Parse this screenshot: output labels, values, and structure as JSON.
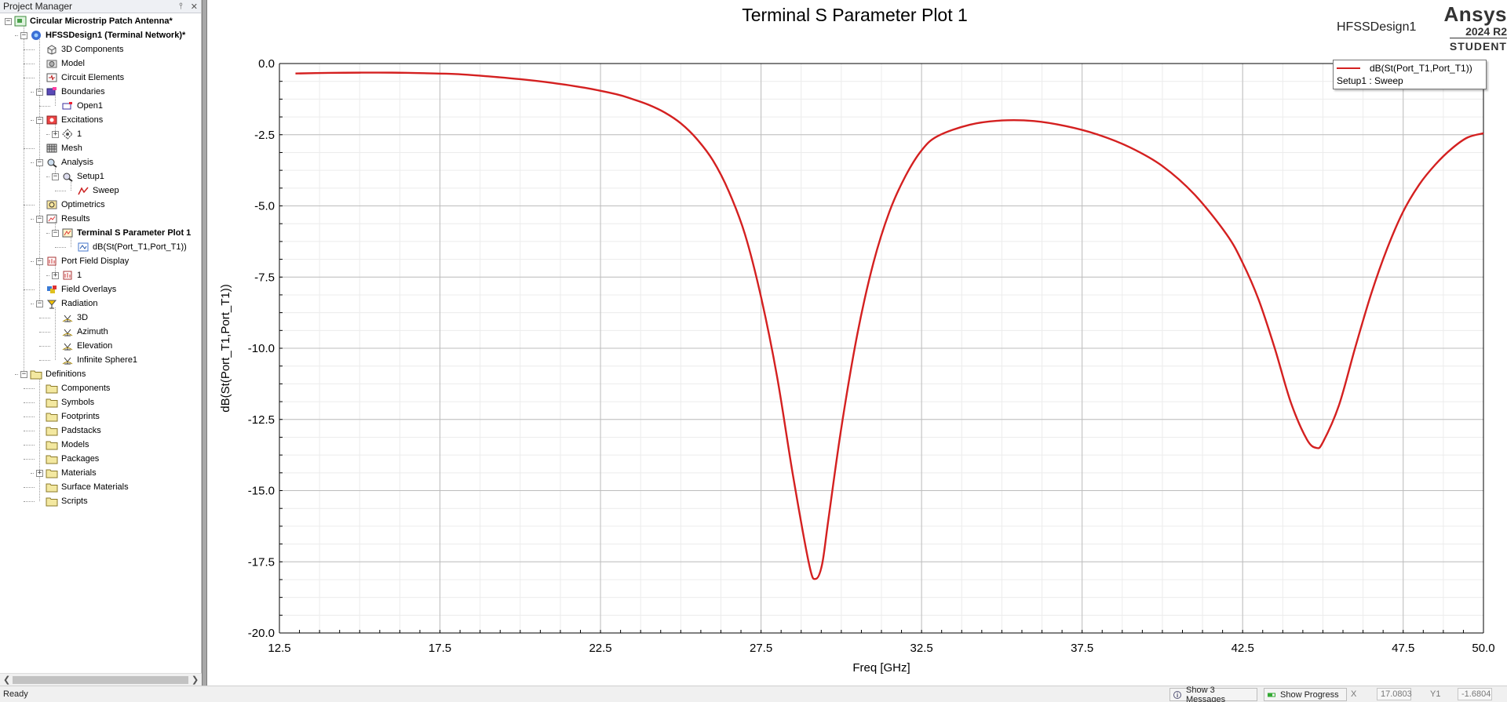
{
  "project_manager": {
    "title": "Project Manager",
    "pin_glyph": "📌",
    "close_glyph": "✕",
    "tree": [
      {
        "label": "Circular Microstrip Patch Antenna*",
        "level": 0,
        "toggle": "-",
        "icon": "project-icon",
        "bold": true
      },
      {
        "label": "HFSSDesign1 (Terminal Network)*",
        "level": 1,
        "toggle": "-",
        "icon": "hfss-design-icon",
        "bold": true
      },
      {
        "label": "3D Components",
        "level": 2,
        "toggle": "",
        "icon": "components-3d-icon"
      },
      {
        "label": "Model",
        "level": 2,
        "toggle": "",
        "icon": "model-icon"
      },
      {
        "label": "Circuit Elements",
        "level": 2,
        "toggle": "",
        "icon": "circuit-elements-icon"
      },
      {
        "label": "Boundaries",
        "level": 2,
        "toggle": "-",
        "icon": "boundaries-icon"
      },
      {
        "label": "Open1",
        "level": 3,
        "toggle": "",
        "icon": "boundary-open-icon"
      },
      {
        "label": "Excitations",
        "level": 2,
        "toggle": "-",
        "icon": "excitations-icon"
      },
      {
        "label": "1",
        "level": 3,
        "toggle": "+",
        "icon": "port-icon"
      },
      {
        "label": "Mesh",
        "level": 2,
        "toggle": "",
        "icon": "mesh-icon"
      },
      {
        "label": "Analysis",
        "level": 2,
        "toggle": "-",
        "icon": "analysis-icon"
      },
      {
        "label": "Setup1",
        "level": 3,
        "toggle": "-",
        "icon": "setup-icon"
      },
      {
        "label": "Sweep",
        "level": 4,
        "toggle": "",
        "icon": "sweep-icon"
      },
      {
        "label": "Optimetrics",
        "level": 2,
        "toggle": "",
        "icon": "optimetrics-icon"
      },
      {
        "label": "Results",
        "level": 2,
        "toggle": "-",
        "icon": "results-icon"
      },
      {
        "label": "Terminal S Parameter Plot 1",
        "level": 3,
        "toggle": "-",
        "icon": "report-plot-icon",
        "bold": true
      },
      {
        "label": "dB(St(Port_T1,Port_T1))",
        "level": 4,
        "toggle": "",
        "icon": "trace-icon"
      },
      {
        "label": "Port Field Display",
        "level": 2,
        "toggle": "-",
        "icon": "port-field-icon"
      },
      {
        "label": "1",
        "level": 3,
        "toggle": "+",
        "icon": "port-field-icon"
      },
      {
        "label": "Field Overlays",
        "level": 2,
        "toggle": "",
        "icon": "field-overlays-icon"
      },
      {
        "label": "Radiation",
        "level": 2,
        "toggle": "-",
        "icon": "radiation-icon"
      },
      {
        "label": "3D",
        "level": 3,
        "toggle": "",
        "icon": "radiation-setup-icon"
      },
      {
        "label": "Azimuth",
        "level": 3,
        "toggle": "",
        "icon": "radiation-setup-icon"
      },
      {
        "label": "Elevation",
        "level": 3,
        "toggle": "",
        "icon": "radiation-setup-icon"
      },
      {
        "label": "Infinite Sphere1",
        "level": 3,
        "toggle": "",
        "icon": "radiation-setup-icon"
      },
      {
        "label": "Definitions",
        "level": 1,
        "toggle": "-",
        "icon": "folder-icon"
      },
      {
        "label": "Components",
        "level": 2,
        "toggle": "",
        "icon": "folder-icon"
      },
      {
        "label": "Symbols",
        "level": 2,
        "toggle": "",
        "icon": "folder-icon"
      },
      {
        "label": "Footprints",
        "level": 2,
        "toggle": "",
        "icon": "folder-icon"
      },
      {
        "label": "Padstacks",
        "level": 2,
        "toggle": "",
        "icon": "folder-icon"
      },
      {
        "label": "Models",
        "level": 2,
        "toggle": "",
        "icon": "folder-icon"
      },
      {
        "label": "Packages",
        "level": 2,
        "toggle": "",
        "icon": "folder-icon"
      },
      {
        "label": "Materials",
        "level": 2,
        "toggle": "+",
        "icon": "folder-icon"
      },
      {
        "label": "Surface Materials",
        "level": 2,
        "toggle": "",
        "icon": "folder-icon"
      },
      {
        "label": "Scripts",
        "level": 2,
        "toggle": "",
        "icon": "folder-icon"
      }
    ]
  },
  "plot": {
    "title": "Terminal S Parameter Plot 1",
    "design_name": "HFSSDesign1",
    "logo": {
      "brand": "Ansys",
      "version": "2024 R2",
      "edition": "STUDENT"
    },
    "legend": {
      "trace": "dB(St(Port_T1,Port_T1))",
      "setup": "Setup1 : Sweep"
    }
  },
  "chart_data": {
    "type": "line",
    "title": "Terminal S Parameter Plot 1",
    "xlabel": "Freq [GHz]",
    "ylabel": "dB(St(Port_T1,Port_T1))",
    "xlim": [
      12.5,
      50.0
    ],
    "ylim": [
      -20.0,
      0.0
    ],
    "xticks": [
      "12.5",
      "17.5",
      "22.5",
      "27.5",
      "32.5",
      "37.5",
      "42.5",
      "47.5",
      "50.0"
    ],
    "yticks": [
      "0.0",
      "-2.5",
      "-5.0",
      "-7.5",
      "-10.0",
      "-12.5",
      "-15.0",
      "-17.5",
      "-20.0"
    ],
    "grid": true,
    "legend_position": "top-right",
    "series": [
      {
        "name": "dB(St(Port_T1,Port_T1))",
        "color": "#d42020",
        "x": [
          13.0,
          14.0,
          15.0,
          16.0,
          17.0,
          18.0,
          19.0,
          20.0,
          21.0,
          22.0,
          23.0,
          23.5,
          24.0,
          24.5,
          25.0,
          25.5,
          26.0,
          26.5,
          27.0,
          27.5,
          28.0,
          28.5,
          29.0,
          29.2,
          29.4,
          29.6,
          30.0,
          30.5,
          31.0,
          31.5,
          32.0,
          32.5,
          33.0,
          34.0,
          35.0,
          36.0,
          37.0,
          38.0,
          39.0,
          40.0,
          41.0,
          42.0,
          42.5,
          43.0,
          43.5,
          44.0,
          44.5,
          44.8,
          45.0,
          45.5,
          46.0,
          46.5,
          47.0,
          47.5,
          48.0,
          48.5,
          49.0,
          49.5,
          50.0
        ],
        "y": [
          -0.35,
          -0.33,
          -0.32,
          -0.32,
          -0.34,
          -0.37,
          -0.45,
          -0.55,
          -0.68,
          -0.85,
          -1.08,
          -1.25,
          -1.45,
          -1.72,
          -2.1,
          -2.65,
          -3.4,
          -4.5,
          -6.0,
          -8.2,
          -11.0,
          -14.5,
          -17.6,
          -18.1,
          -17.6,
          -16.0,
          -12.8,
          -9.5,
          -7.0,
          -5.2,
          -3.95,
          -3.05,
          -2.55,
          -2.15,
          -2.0,
          -2.02,
          -2.2,
          -2.5,
          -2.95,
          -3.6,
          -4.6,
          -6.0,
          -7.0,
          -8.3,
          -10.0,
          -11.9,
          -13.2,
          -13.5,
          -13.3,
          -12.0,
          -10.0,
          -8.1,
          -6.5,
          -5.2,
          -4.25,
          -3.55,
          -3.0,
          -2.6,
          -2.45
        ]
      }
    ]
  },
  "status_bar": {
    "text": "Ready",
    "messages_button": "Show 3 Messages",
    "progress_button": "Show Progress",
    "x_label": "X",
    "x_value": "17.0803",
    "y_label": "Y1",
    "y_value": "-1.6804"
  }
}
